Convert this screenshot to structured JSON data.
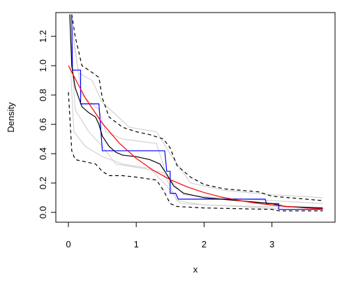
{
  "chart_data": {
    "type": "line",
    "xlabel": "x",
    "ylabel": "Density",
    "xlim": [
      -0.185,
      3.93
    ],
    "ylim": [
      -0.067,
      1.362
    ],
    "xticks": [
      0,
      1,
      2,
      3
    ],
    "yticks": [
      {
        "value": 0,
        "label": "0.0"
      },
      0.2,
      0.4,
      0.6,
      0.8,
      {
        "value": 1,
        "label": "1.0"
      },
      1.2
    ],
    "series": [
      {
        "color": "#d3d3d3",
        "dash": "solid",
        "x": [
          0.03,
          0.1,
          0.2,
          0.45,
          0.55,
          0.8,
          1.3,
          1.45,
          1.7,
          2.2,
          3.0,
          3.75
        ],
        "values": [
          1.35,
          1.1,
          0.8,
          0.7,
          0.55,
          0.5,
          0.47,
          0.25,
          0.12,
          0.1,
          0.08,
          0.06
        ]
      },
      {
        "color": "#d3d3d3",
        "dash": "solid",
        "x": [
          0.03,
          0.1,
          0.3,
          0.5,
          0.7,
          1.1,
          1.4,
          1.6,
          2.0,
          2.8,
          3.75
        ],
        "values": [
          1.2,
          0.7,
          0.55,
          0.45,
          0.33,
          0.3,
          0.27,
          0.08,
          0.05,
          0.04,
          0.03
        ]
      },
      {
        "color": "#d3d3d3",
        "dash": "solid",
        "x": [
          0.03,
          0.15,
          0.35,
          0.5,
          0.9,
          1.3,
          1.5,
          1.8,
          2.3,
          3.0,
          3.75
        ],
        "values": [
          1.35,
          0.95,
          0.9,
          0.75,
          0.58,
          0.55,
          0.4,
          0.2,
          0.15,
          0.12,
          0.1
        ]
      },
      {
        "color": "#d3d3d3",
        "dash": "solid",
        "x": [
          0.03,
          0.08,
          0.25,
          0.5,
          0.8,
          1.2,
          1.45,
          1.65,
          2.5,
          3.2,
          3.75
        ],
        "values": [
          1.0,
          0.55,
          0.45,
          0.38,
          0.33,
          0.3,
          0.18,
          0.06,
          0.04,
          0.02,
          0.02
        ]
      },
      {
        "color": "#000000",
        "dash": "dashed",
        "x": [
          0.05,
          0.1,
          0.2,
          0.3,
          0.45,
          0.5,
          0.6,
          0.8,
          1.0,
          1.2,
          1.4,
          1.5,
          1.6,
          1.8,
          2.0,
          2.3,
          2.8,
          3.0,
          3.5,
          3.75
        ],
        "values": [
          1.35,
          1.2,
          1.0,
          0.97,
          0.92,
          0.78,
          0.65,
          0.58,
          0.55,
          0.53,
          0.5,
          0.44,
          0.32,
          0.24,
          0.19,
          0.16,
          0.14,
          0.11,
          0.09,
          0.08
        ]
      },
      {
        "color": "#000000",
        "dash": "dashed",
        "x": [
          0.0,
          0.05,
          0.1,
          0.2,
          0.4,
          0.5,
          0.6,
          0.8,
          1.0,
          1.3,
          1.4,
          1.5,
          1.6,
          2.0,
          3.0,
          3.1,
          3.75
        ],
        "values": [
          0.82,
          0.42,
          0.36,
          0.35,
          0.33,
          0.28,
          0.25,
          0.25,
          0.24,
          0.22,
          0.15,
          0.06,
          0.04,
          0.03,
          0.02,
          0.01,
          0.01
        ]
      },
      {
        "color": "#0000ff",
        "dash": "solid",
        "x": [
          0.05,
          0.06,
          0.18,
          0.18,
          0.45,
          0.5,
          1.42,
          1.45,
          1.5,
          1.5,
          1.58,
          1.62,
          2.9,
          2.92,
          3.1,
          3.1,
          3.75
        ],
        "values": [
          1.35,
          0.97,
          0.97,
          0.74,
          0.74,
          0.42,
          0.42,
          0.28,
          0.28,
          0.13,
          0.13,
          0.09,
          0.09,
          0.06,
          0.06,
          0.02,
          0.02
        ]
      },
      {
        "color": "#000000",
        "dash": "solid",
        "x": [
          0.02,
          0.05,
          0.1,
          0.2,
          0.3,
          0.4,
          0.45,
          0.5,
          0.6,
          0.7,
          0.8,
          1.0,
          1.2,
          1.35,
          1.45,
          1.55,
          1.7,
          2.0,
          2.5,
          3.0,
          3.2,
          3.75
        ],
        "values": [
          1.35,
          1.0,
          0.85,
          0.72,
          0.68,
          0.65,
          0.6,
          0.52,
          0.45,
          0.41,
          0.39,
          0.38,
          0.36,
          0.33,
          0.26,
          0.18,
          0.13,
          0.1,
          0.08,
          0.06,
          0.04,
          0.03
        ]
      },
      {
        "color": "#ff0000",
        "dash": "solid",
        "x": [
          0,
          0.25,
          0.5,
          0.75,
          1,
          1.25,
          1.5,
          1.75,
          2,
          2.25,
          2.5,
          2.75,
          3,
          3.25,
          3.5,
          3.75
        ],
        "values": [
          1,
          0.779,
          0.607,
          0.472,
          0.368,
          0.287,
          0.223,
          0.174,
          0.135,
          0.105,
          0.082,
          0.064,
          0.05,
          0.039,
          0.03,
          0.024
        ]
      }
    ]
  }
}
